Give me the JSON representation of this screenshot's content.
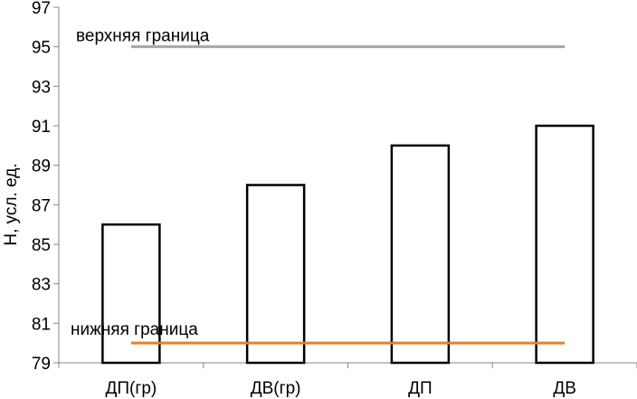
{
  "chart_data": {
    "type": "bar",
    "categories": [
      "ДП(гр)",
      "ДВ(гр)",
      "ДП",
      "ДВ"
    ],
    "values": [
      86,
      88,
      90,
      91
    ],
    "ylabel": "Н, усл. ед.",
    "xlabel": "",
    "ylim": [
      79,
      97
    ],
    "yticks": [
      79,
      81,
      83,
      85,
      87,
      89,
      91,
      93,
      95,
      97
    ],
    "grid": false,
    "bar_fill": "#ffffff",
    "bar_stroke": "#000000",
    "reference_lines": [
      {
        "label": "верхняя граница",
        "value": 95,
        "color": "#a6a6a6"
      },
      {
        "label": "нижняя граница",
        "value": 80,
        "color": "#e0812f"
      }
    ]
  }
}
